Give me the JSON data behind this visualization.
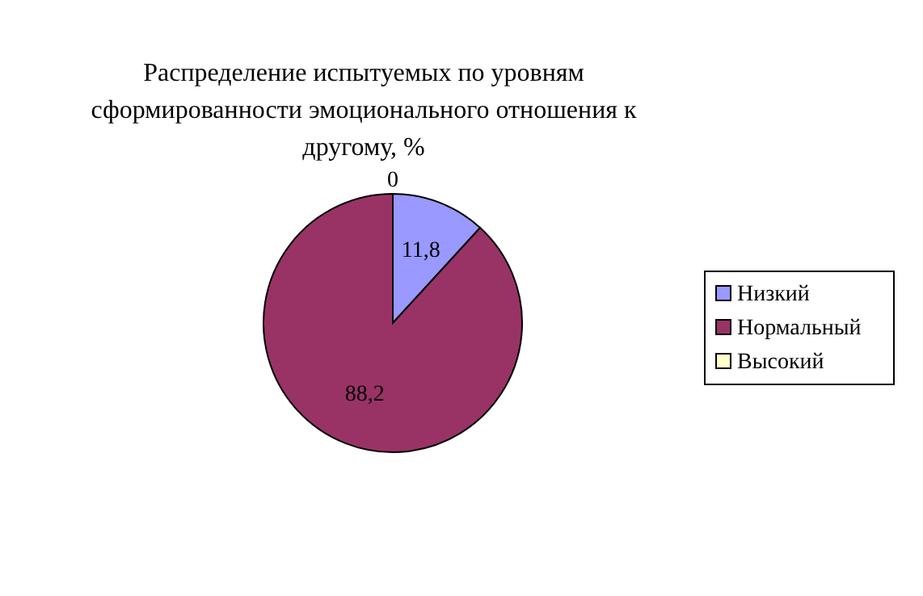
{
  "chart_data": {
    "type": "pie",
    "title": "Распределение испытуемых по уровням сформированности эмоционального отношения к другому, %",
    "categories": [
      "Низкий",
      "Нормальный",
      "Высокий"
    ],
    "values": [
      11.8,
      88.2,
      0
    ],
    "colors": [
      "#9999ff",
      "#993366",
      "#ffffcc"
    ],
    "value_labels": [
      "11,8",
      "88,2",
      "0"
    ],
    "legend": "right"
  }
}
